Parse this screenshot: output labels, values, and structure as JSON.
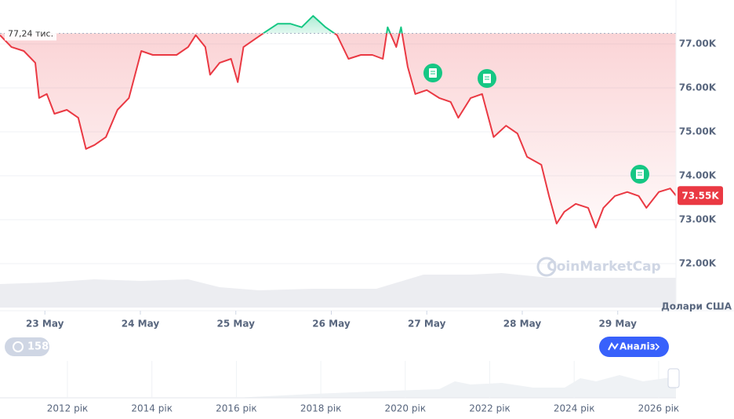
{
  "chart_data": {
    "type": "line",
    "x": [
      22.53,
      22.65,
      22.78,
      22.9,
      22.94,
      23.02,
      23.1,
      23.23,
      23.35,
      23.43,
      23.52,
      23.64,
      23.76,
      23.88,
      24.01,
      24.13,
      24.25,
      24.38,
      24.5,
      24.58,
      24.68,
      24.73,
      24.83,
      24.95,
      25.02,
      25.08,
      25.2,
      25.32,
      25.44,
      25.57,
      25.69,
      25.81,
      25.94,
      26.06,
      26.18,
      26.31,
      26.43,
      26.54,
      26.59,
      26.68,
      26.73,
      26.8,
      26.88,
      27.0,
      27.13,
      27.25,
      27.33,
      27.46,
      27.58,
      27.7,
      27.83,
      27.95,
      28.05,
      28.2,
      28.28,
      28.36,
      28.44,
      28.56,
      28.69,
      28.77,
      28.85,
      28.97,
      29.1,
      29.22,
      29.3,
      29.43,
      29.55,
      29.61
    ],
    "series": [
      {
        "values": [
          77200,
          76930,
          76840,
          76570,
          75770,
          75860,
          75410,
          75500,
          75320,
          74610,
          74700,
          74880,
          75500,
          75770,
          76840,
          76750,
          76750,
          76750,
          76930,
          77200,
          76930,
          76300,
          76570,
          76660,
          76130,
          76930,
          77110,
          77290,
          77460,
          77460,
          77380,
          77640,
          77380,
          77200,
          76660,
          76750,
          76750,
          76660,
          77380,
          76930,
          77380,
          76480,
          75860,
          75950,
          75770,
          75680,
          75320,
          75770,
          75860,
          74880,
          75140,
          74960,
          74430,
          74250,
          73540,
          72910,
          73180,
          73360,
          73270,
          72820,
          73270,
          73540,
          73630,
          73540,
          73270,
          73630,
          73710,
          73550
        ]
      }
    ],
    "up_color": "#16c784",
    "down_color": "#ea3943",
    "xlim": [
      22.53,
      29.61
    ],
    "xticks": [
      {
        "value": 23,
        "label": "23 May"
      },
      {
        "value": 24,
        "label": "24 May"
      },
      {
        "value": 25,
        "label": "25 May"
      },
      {
        "value": 26,
        "label": "26 May"
      },
      {
        "value": 27,
        "label": "27 May"
      },
      {
        "value": 28,
        "label": "28 May"
      },
      {
        "value": 29,
        "label": "29 May"
      }
    ],
    "ylim": [
      71000,
      78000
    ],
    "yticks": [
      {
        "value": 72000,
        "label": "72.00K"
      },
      {
        "value": 73000,
        "label": "73.00K"
      },
      {
        "value": 74000,
        "label": "74.00K"
      },
      {
        "value": 75000,
        "label": "75.00K"
      },
      {
        "value": 76000,
        "label": "76.00K"
      },
      {
        "value": 77000,
        "label": "77.00K"
      }
    ],
    "grid": true,
    "baseline": {
      "value": 77240,
      "label": "77,24 тис."
    },
    "current_price": {
      "value": 73550,
      "label": "73.55K"
    },
    "currency_label": "Долари США",
    "watermark": "CoinMarketCap",
    "events_badge": "158",
    "analysis_button": "Аналіз",
    "navigator_labels": [
      "2012 рік",
      "2014 рік",
      "2016 рік",
      "2018 рік",
      "2020 рік",
      "2022 рік",
      "2024 рік",
      "2026 рік"
    ]
  }
}
